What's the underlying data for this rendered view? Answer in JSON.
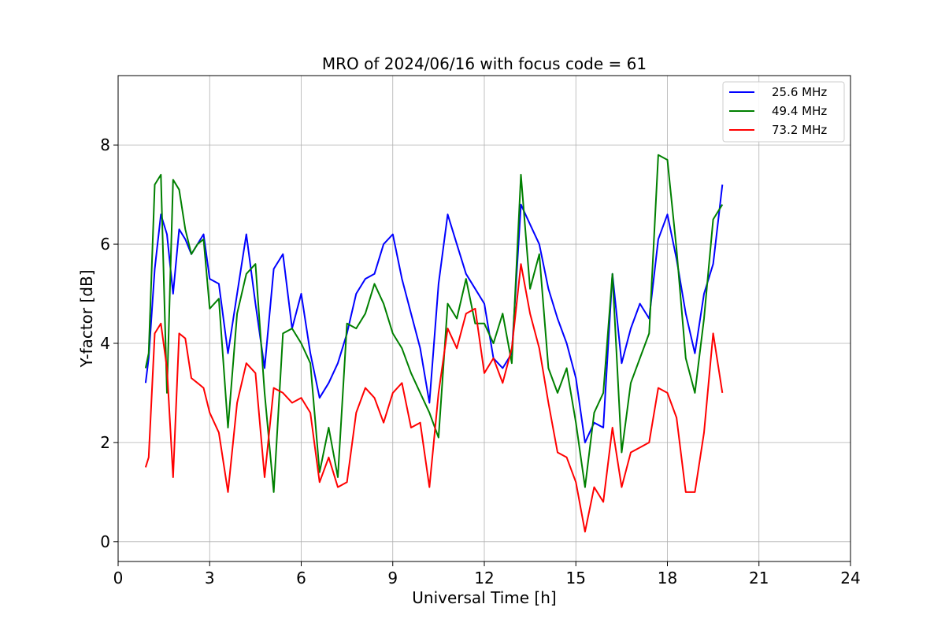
{
  "chart_data": {
    "type": "line",
    "title": "MRO of 2024/06/16 with focus code = 61",
    "xlabel": "Universal Time [h]",
    "ylabel": "Y-factor [dB]",
    "xlim": [
      0,
      24
    ],
    "ylim": [
      -0.4,
      9.4
    ],
    "xticks": [
      0,
      3,
      6,
      9,
      12,
      15,
      18,
      21,
      24
    ],
    "yticks": [
      0,
      2,
      4,
      6,
      8
    ],
    "grid": true,
    "legend_position": "top-right",
    "series": [
      {
        "name": "25.6 MHz",
        "color": "#0000ff",
        "x": [
          0.9,
          1.0,
          1.2,
          1.4,
          1.6,
          1.8,
          2.0,
          2.2,
          2.4,
          2.6,
          2.8,
          3.0,
          3.3,
          3.6,
          3.9,
          4.2,
          4.5,
          4.8,
          5.1,
          5.4,
          5.7,
          6.0,
          6.3,
          6.6,
          6.9,
          7.2,
          7.5,
          7.8,
          8.1,
          8.4,
          8.7,
          9.0,
          9.3,
          9.6,
          9.9,
          10.2,
          10.5,
          10.8,
          11.1,
          11.4,
          11.7,
          12.0,
          12.3,
          12.6,
          12.9,
          13.2,
          13.5,
          13.8,
          14.1,
          14.4,
          14.7,
          15.0,
          15.3,
          15.6,
          15.9,
          16.2,
          16.5,
          16.8,
          17.1,
          17.4,
          17.7,
          18.0,
          18.3,
          18.6,
          18.9,
          19.2,
          19.5,
          19.8
        ],
        "y": [
          3.2,
          3.7,
          5.5,
          6.6,
          6.2,
          5.0,
          6.3,
          6.1,
          5.8,
          6.0,
          6.2,
          5.3,
          5.2,
          3.8,
          5.0,
          6.2,
          4.8,
          3.5,
          5.5,
          5.8,
          4.3,
          5.0,
          3.8,
          2.9,
          3.2,
          3.6,
          4.2,
          5.0,
          5.3,
          5.4,
          6.0,
          6.2,
          5.3,
          4.6,
          3.9,
          2.8,
          5.2,
          6.6,
          6.0,
          5.4,
          5.1,
          4.8,
          3.7,
          3.5,
          3.8,
          6.8,
          6.4,
          6.0,
          5.1,
          4.5,
          4.0,
          3.3,
          2.0,
          2.4,
          2.3,
          5.4,
          3.6,
          4.3,
          4.8,
          4.5,
          6.1,
          6.6,
          5.7,
          4.6,
          3.8,
          5.0,
          5.6,
          7.2
        ]
      },
      {
        "name": "49.4 MHz",
        "color": "#008000",
        "x": [
          0.9,
          1.0,
          1.2,
          1.4,
          1.6,
          1.8,
          2.0,
          2.2,
          2.4,
          2.6,
          2.8,
          3.0,
          3.3,
          3.6,
          3.9,
          4.2,
          4.5,
          4.8,
          5.1,
          5.4,
          5.7,
          6.0,
          6.3,
          6.6,
          6.9,
          7.2,
          7.5,
          7.8,
          8.1,
          8.4,
          8.7,
          9.0,
          9.3,
          9.6,
          9.9,
          10.2,
          10.5,
          10.8,
          11.1,
          11.4,
          11.7,
          12.0,
          12.3,
          12.6,
          12.9,
          13.2,
          13.5,
          13.8,
          14.1,
          14.4,
          14.7,
          15.0,
          15.3,
          15.6,
          15.9,
          16.2,
          16.5,
          16.8,
          17.1,
          17.4,
          17.7,
          18.0,
          18.3,
          18.6,
          18.9,
          19.2,
          19.5,
          19.8
        ],
        "y": [
          3.5,
          3.8,
          7.2,
          7.4,
          3.0,
          7.3,
          7.1,
          6.3,
          5.8,
          6.0,
          6.1,
          4.7,
          4.9,
          2.3,
          4.6,
          5.4,
          5.6,
          3.0,
          1.0,
          4.2,
          4.3,
          4.0,
          3.6,
          1.4,
          2.3,
          1.3,
          4.4,
          4.3,
          4.6,
          5.2,
          4.8,
          4.2,
          3.9,
          3.4,
          3.0,
          2.6,
          2.1,
          4.8,
          4.5,
          5.3,
          4.4,
          4.4,
          4.0,
          4.6,
          3.6,
          7.4,
          5.1,
          5.8,
          3.5,
          3.0,
          3.5,
          2.4,
          1.1,
          2.6,
          3.0,
          5.4,
          1.8,
          3.2,
          3.7,
          4.2,
          7.8,
          7.7,
          5.9,
          3.7,
          3.0,
          4.5,
          6.5,
          6.8
        ]
      },
      {
        "name": "73.2 MHz",
        "color": "#ff0000",
        "x": [
          0.9,
          1.0,
          1.2,
          1.4,
          1.6,
          1.8,
          2.0,
          2.2,
          2.4,
          2.6,
          2.8,
          3.0,
          3.3,
          3.6,
          3.9,
          4.2,
          4.5,
          4.8,
          5.1,
          5.4,
          5.7,
          6.0,
          6.3,
          6.6,
          6.9,
          7.2,
          7.5,
          7.8,
          8.1,
          8.4,
          8.7,
          9.0,
          9.3,
          9.6,
          9.9,
          10.2,
          10.5,
          10.8,
          11.1,
          11.4,
          11.7,
          12.0,
          12.3,
          12.6,
          12.9,
          13.2,
          13.5,
          13.8,
          14.1,
          14.4,
          14.7,
          15.0,
          15.3,
          15.6,
          15.9,
          16.2,
          16.5,
          16.8,
          17.1,
          17.4,
          17.7,
          18.0,
          18.3,
          18.6,
          18.9,
          19.2,
          19.5,
          19.8
        ],
        "y": [
          1.5,
          1.7,
          4.2,
          4.4,
          3.5,
          1.3,
          4.2,
          4.1,
          3.3,
          3.2,
          3.1,
          2.6,
          2.2,
          1.0,
          2.8,
          3.6,
          3.4,
          1.3,
          3.1,
          3.0,
          2.8,
          2.9,
          2.6,
          1.2,
          1.7,
          1.1,
          1.2,
          2.6,
          3.1,
          2.9,
          2.4,
          3.0,
          3.2,
          2.3,
          2.4,
          1.1,
          3.0,
          4.3,
          3.9,
          4.6,
          4.7,
          3.4,
          3.7,
          3.2,
          3.9,
          5.6,
          4.6,
          3.9,
          2.8,
          1.8,
          1.7,
          1.2,
          0.2,
          1.1,
          0.8,
          2.3,
          1.1,
          1.8,
          1.9,
          2.0,
          3.1,
          3.0,
          2.5,
          1.0,
          1.0,
          2.2,
          4.2,
          3.0
        ]
      }
    ]
  }
}
